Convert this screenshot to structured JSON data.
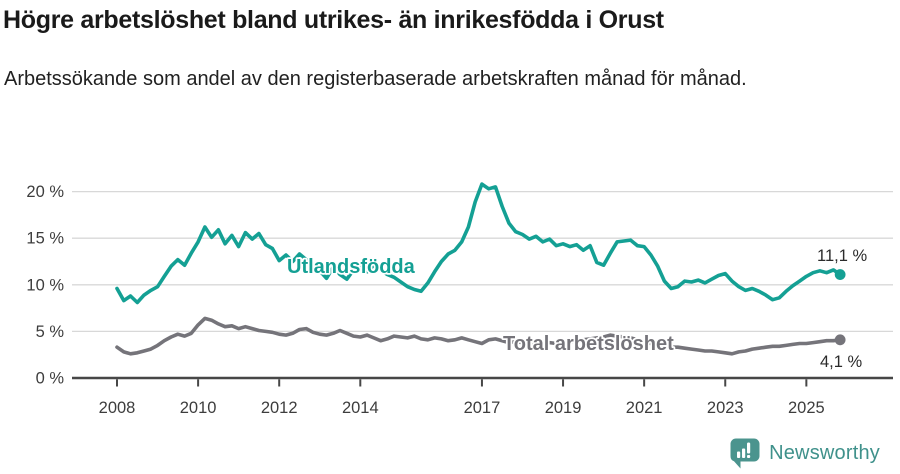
{
  "header": {
    "title": "Högre arbetslöshet bland utrikes- än inrikesfödda i Orust",
    "subtitle": "Arbetssökande som andel av den registerbaserade arbetskraften månad för månad."
  },
  "chart_data": {
    "type": "line",
    "title": "Högre arbetslöshet bland utrikes- än inrikesfödda i Orust",
    "x_unit": "month",
    "x_start_year": 2008,
    "x_points_per_year": 6,
    "x_end_approx": "late 2025",
    "x_tick_years": [
      2008,
      2010,
      2012,
      2014,
      2017,
      2019,
      2021,
      2023,
      2025
    ],
    "x_tick_labels": [
      "2008",
      "2010",
      "2012",
      "2014",
      "2017",
      "2019",
      "2021",
      "2023",
      "2025"
    ],
    "y_ticks": [
      {
        "v": 0,
        "label": "0 %"
      },
      {
        "v": 5,
        "label": "5 %"
      },
      {
        "v": 10,
        "label": "10 %"
      },
      {
        "v": 15,
        "label": "15 %"
      },
      {
        "v": 20,
        "label": "20 %"
      }
    ],
    "ylim": [
      0,
      21.5
    ],
    "grid": "horizontal",
    "legend_position": "inline-labels",
    "series": [
      {
        "name": "Utlandsfödda",
        "color": "#14a094",
        "end_value": 11.1,
        "end_label": "11,1 %",
        "values": [
          9.6,
          8.3,
          8.8,
          8.1,
          8.9,
          9.4,
          9.8,
          10.9,
          12.0,
          12.7,
          12.1,
          13.4,
          14.6,
          16.2,
          15.1,
          15.9,
          14.4,
          15.3,
          14.1,
          15.6,
          14.9,
          15.5,
          14.3,
          13.9,
          12.6,
          13.2,
          12.5,
          13.3,
          12.7,
          12.2,
          11.5,
          10.7,
          11.9,
          11.1,
          10.6,
          11.6,
          11.9,
          11.4,
          12.1,
          11.6,
          11.1,
          10.8,
          10.3,
          9.8,
          9.5,
          9.3,
          10.2,
          11.4,
          12.5,
          13.3,
          13.7,
          14.6,
          16.2,
          18.9,
          20.8,
          20.3,
          20.5,
          18.4,
          16.6,
          15.7,
          15.4,
          14.9,
          15.2,
          14.6,
          14.9,
          14.2,
          14.4,
          14.1,
          14.3,
          13.7,
          14.2,
          12.4,
          12.1,
          13.4,
          14.6,
          14.7,
          14.8,
          14.2,
          14.1,
          13.2,
          12.0,
          10.4,
          9.6,
          9.8,
          10.4,
          10.3,
          10.5,
          10.2,
          10.6,
          11.0,
          11.2,
          10.4,
          9.8,
          9.4,
          9.6,
          9.3,
          8.9,
          8.4,
          8.6,
          9.3,
          9.9,
          10.4,
          10.9,
          11.3,
          11.5,
          11.3,
          11.6,
          11.1
        ]
      },
      {
        "name": "Total arbetslöshet",
        "color": "#75747a",
        "end_value": 4.1,
        "end_label": "4,1 %",
        "values": [
          3.3,
          2.8,
          2.6,
          2.7,
          2.9,
          3.1,
          3.5,
          4.0,
          4.4,
          4.7,
          4.5,
          4.8,
          5.7,
          6.4,
          6.2,
          5.8,
          5.5,
          5.6,
          5.3,
          5.5,
          5.3,
          5.1,
          5.0,
          4.9,
          4.7,
          4.6,
          4.8,
          5.2,
          5.3,
          4.9,
          4.7,
          4.6,
          4.8,
          5.1,
          4.8,
          4.5,
          4.4,
          4.6,
          4.3,
          4.0,
          4.2,
          4.5,
          4.4,
          4.3,
          4.5,
          4.2,
          4.1,
          4.3,
          4.2,
          4.0,
          4.1,
          4.3,
          4.1,
          3.9,
          3.7,
          4.1,
          4.2,
          4.0,
          3.8,
          3.9,
          3.8,
          3.6,
          3.7,
          3.9,
          3.8,
          3.7,
          3.8,
          3.9,
          4.0,
          4.1,
          4.2,
          4.3,
          4.4,
          4.6,
          4.5,
          4.4,
          4.3,
          4.1,
          3.9,
          3.7,
          3.5,
          3.4,
          3.3,
          3.3,
          3.2,
          3.1,
          3.0,
          2.9,
          2.9,
          2.8,
          2.7,
          2.6,
          2.8,
          2.9,
          3.1,
          3.2,
          3.3,
          3.4,
          3.4,
          3.5,
          3.6,
          3.7,
          3.7,
          3.8,
          3.9,
          4.0,
          4.0,
          4.1
        ]
      }
    ],
    "colors": {
      "grid": "#d8d8d8",
      "axis": "#474747",
      "axis_text": "#3d3d3d",
      "annotation_text": "#2b2b2b"
    }
  },
  "footer": {
    "brand": "Newsworthy",
    "brand_color": "#3f918b"
  }
}
